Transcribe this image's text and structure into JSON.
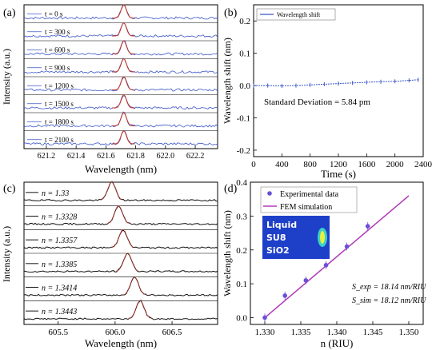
{
  "colors": {
    "blue": "#3a55c8",
    "red": "#c0392b",
    "magenta": "#b03ab8",
    "black": "#111111",
    "insetBg": "#1e3fc8"
  },
  "chart_data": [
    {
      "type": "line",
      "panel": "(a)",
      "xlabel": "Wavelength (nm)",
      "ylabel": "Intensity (a.u.)",
      "xlim": [
        621.05,
        622.35
      ],
      "xticks": [
        "621.2",
        "621.4",
        "621.6",
        "621.8",
        "622.0",
        "622.2"
      ],
      "peak_center": 621.72,
      "series": [
        {
          "name": "t = 0 s"
        },
        {
          "name": "t = 300 s"
        },
        {
          "name": "t = 600 s"
        },
        {
          "name": "t = 900 s"
        },
        {
          "name": "t = 1200 s"
        },
        {
          "name": "t = 1500 s"
        },
        {
          "name": "t = 1800 s"
        },
        {
          "name": "t = 2100 s"
        }
      ]
    },
    {
      "type": "scatter",
      "panel": "(b)",
      "xlabel": "Time (s)",
      "ylabel": "Wavelength shift (nm)",
      "xlim": [
        0,
        2400
      ],
      "ylim": [
        -0.22,
        0.25
      ],
      "xticks": [
        "0",
        "400",
        "800",
        "1200",
        "1600",
        "2000",
        "2400"
      ],
      "yticks": [
        "-0.2",
        "-0.1",
        "0.0",
        "0.1",
        "0.2"
      ],
      "legend": "Wavelength shift",
      "annotation": "Standard Deviation = 5.84 pm",
      "x": [
        0,
        200,
        400,
        600,
        800,
        1000,
        1200,
        1400,
        1600,
        1800,
        2000,
        2200,
        2330
      ],
      "y": [
        0.0,
        0.0,
        -0.001,
        0.0,
        0.002,
        0.004,
        0.006,
        0.008,
        0.01,
        0.012,
        0.013,
        0.016,
        0.018
      ]
    },
    {
      "type": "line",
      "panel": "(c)",
      "xlabel": "Wavelength (nm)",
      "ylabel": "Intensity (a.u.)",
      "xlim": [
        605.2,
        606.9
      ],
      "xticks": [
        "605.5",
        "606.0",
        "606.5"
      ],
      "series": [
        {
          "name": "n = 1.33",
          "peak": 605.97
        },
        {
          "name": "n = 1.3328",
          "peak": 606.03
        },
        {
          "name": "n = 1.3357",
          "peak": 606.07
        },
        {
          "name": "n = 1.3385",
          "peak": 606.11
        },
        {
          "name": "n = 1.3414",
          "peak": 606.17
        },
        {
          "name": "n = 1.3443",
          "peak": 606.22
        }
      ]
    },
    {
      "type": "scatter",
      "panel": "(d)",
      "xlabel": "n (RIU)",
      "ylabel": "Wavelength shift (nm)",
      "xlim": [
        1.328,
        1.352
      ],
      "ylim": [
        -0.02,
        0.4
      ],
      "xticks": [
        "1.330",
        "1.335",
        "1.340",
        "1.345",
        "1.350"
      ],
      "yticks": [
        "0.0",
        "0.1",
        "0.2",
        "0.3",
        "0.4"
      ],
      "legend": [
        "Experimental data",
        "FEM simulation"
      ],
      "x": [
        1.33,
        1.3328,
        1.3357,
        1.3385,
        1.3414,
        1.3443
      ],
      "y": [
        0.0,
        0.065,
        0.11,
        0.155,
        0.21,
        0.27
      ],
      "fit": {
        "x": [
          1.33,
          1.35
        ],
        "y": [
          0.0,
          0.36
        ]
      },
      "inset_labels": [
        "Liquid",
        "SU8",
        "SiO2"
      ],
      "annotations": [
        "S_exp = 18.14 nm/RIU",
        "S_sim = 18.12 nm/RIU"
      ]
    }
  ]
}
